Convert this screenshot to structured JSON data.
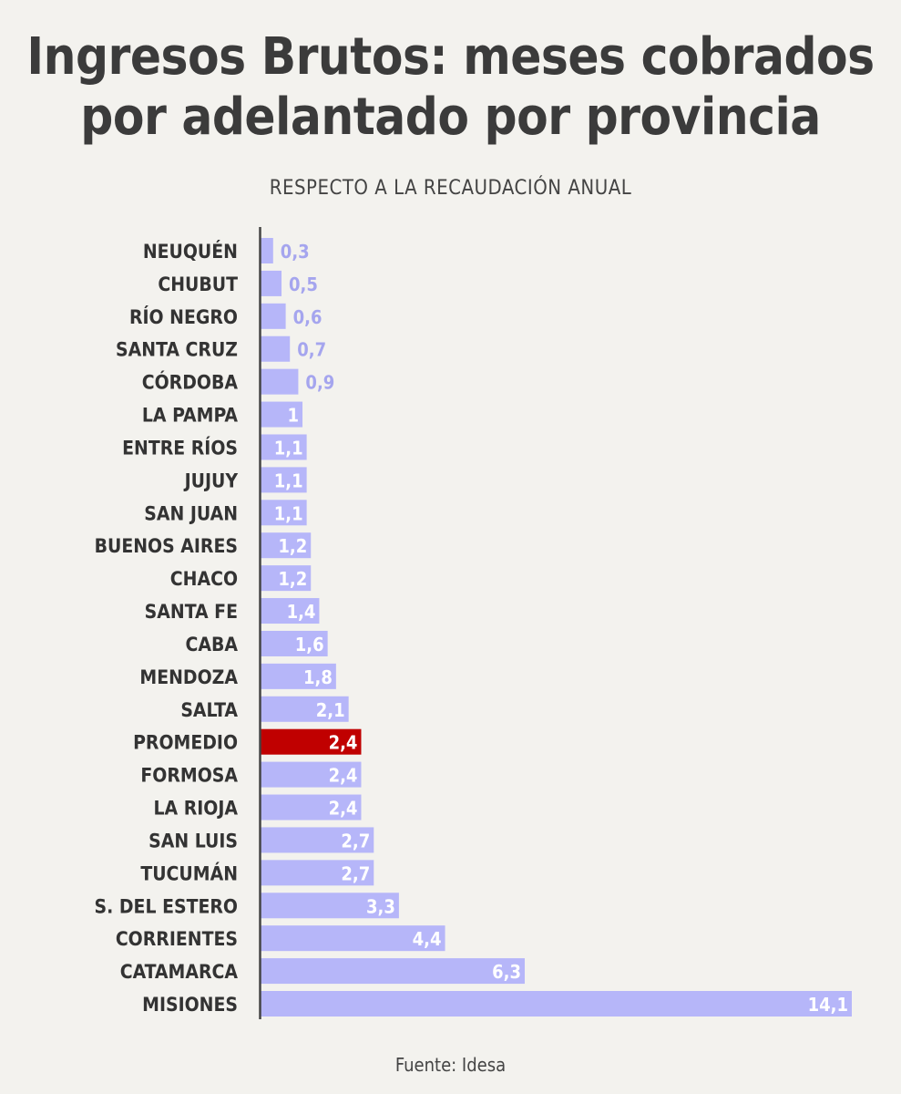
{
  "colors": {
    "bar": "#b6b6f9",
    "highlight_bar": "#c00000",
    "axis": "#444444",
    "label": "#333333",
    "value_label_light": "#a5a5ee",
    "value_label_on_bar": "#ffffff"
  },
  "chart_data": {
    "type": "bar",
    "orientation": "horizontal",
    "title_lines": [
      "Ingresos Brutos: meses cobrados",
      "por adelantado por provincia"
    ],
    "subtitle": "RESPECTO A LA RECAUDACIÓN ANUAL",
    "source": "Fuente: Idesa",
    "xlim": [
      0,
      14.1
    ],
    "highlight_category": "PROMEDIO",
    "categories": [
      "NEUQUÉN",
      "CHUBUT",
      "RÍO NEGRO",
      "SANTA CRUZ",
      "CÓRDOBA",
      "LA PAMPA",
      "ENTRE RÍOS",
      "JUJUY",
      "SAN JUAN",
      "BUENOS AIRES",
      "CHACO",
      "SANTA FE",
      "CABA",
      "MENDOZA",
      "SALTA",
      "PROMEDIO",
      "FORMOSA",
      "LA RIOJA",
      "SAN LUIS",
      "TUCUMÁN",
      "S. DEL ESTERO",
      "CORRIENTES",
      "CATAMARCA",
      "MISIONES"
    ],
    "values": [
      0.3,
      0.5,
      0.6,
      0.7,
      0.9,
      1,
      1.1,
      1.1,
      1.1,
      1.2,
      1.2,
      1.4,
      1.6,
      1.8,
      2.1,
      2.4,
      2.4,
      2.4,
      2.7,
      2.7,
      3.3,
      4.4,
      6.3,
      14.1
    ],
    "value_labels": [
      "0,3",
      "0,5",
      "0,6",
      "0,7",
      "0,9",
      "1",
      "1,1",
      "1,1",
      "1,1",
      "1,2",
      "1,2",
      "1,4",
      "1,6",
      "1,8",
      "2,1",
      "2,4",
      "2,4",
      "2,4",
      "2,7",
      "2,7",
      "3,3",
      "4,4",
      "6,3",
      "14,1"
    ]
  }
}
